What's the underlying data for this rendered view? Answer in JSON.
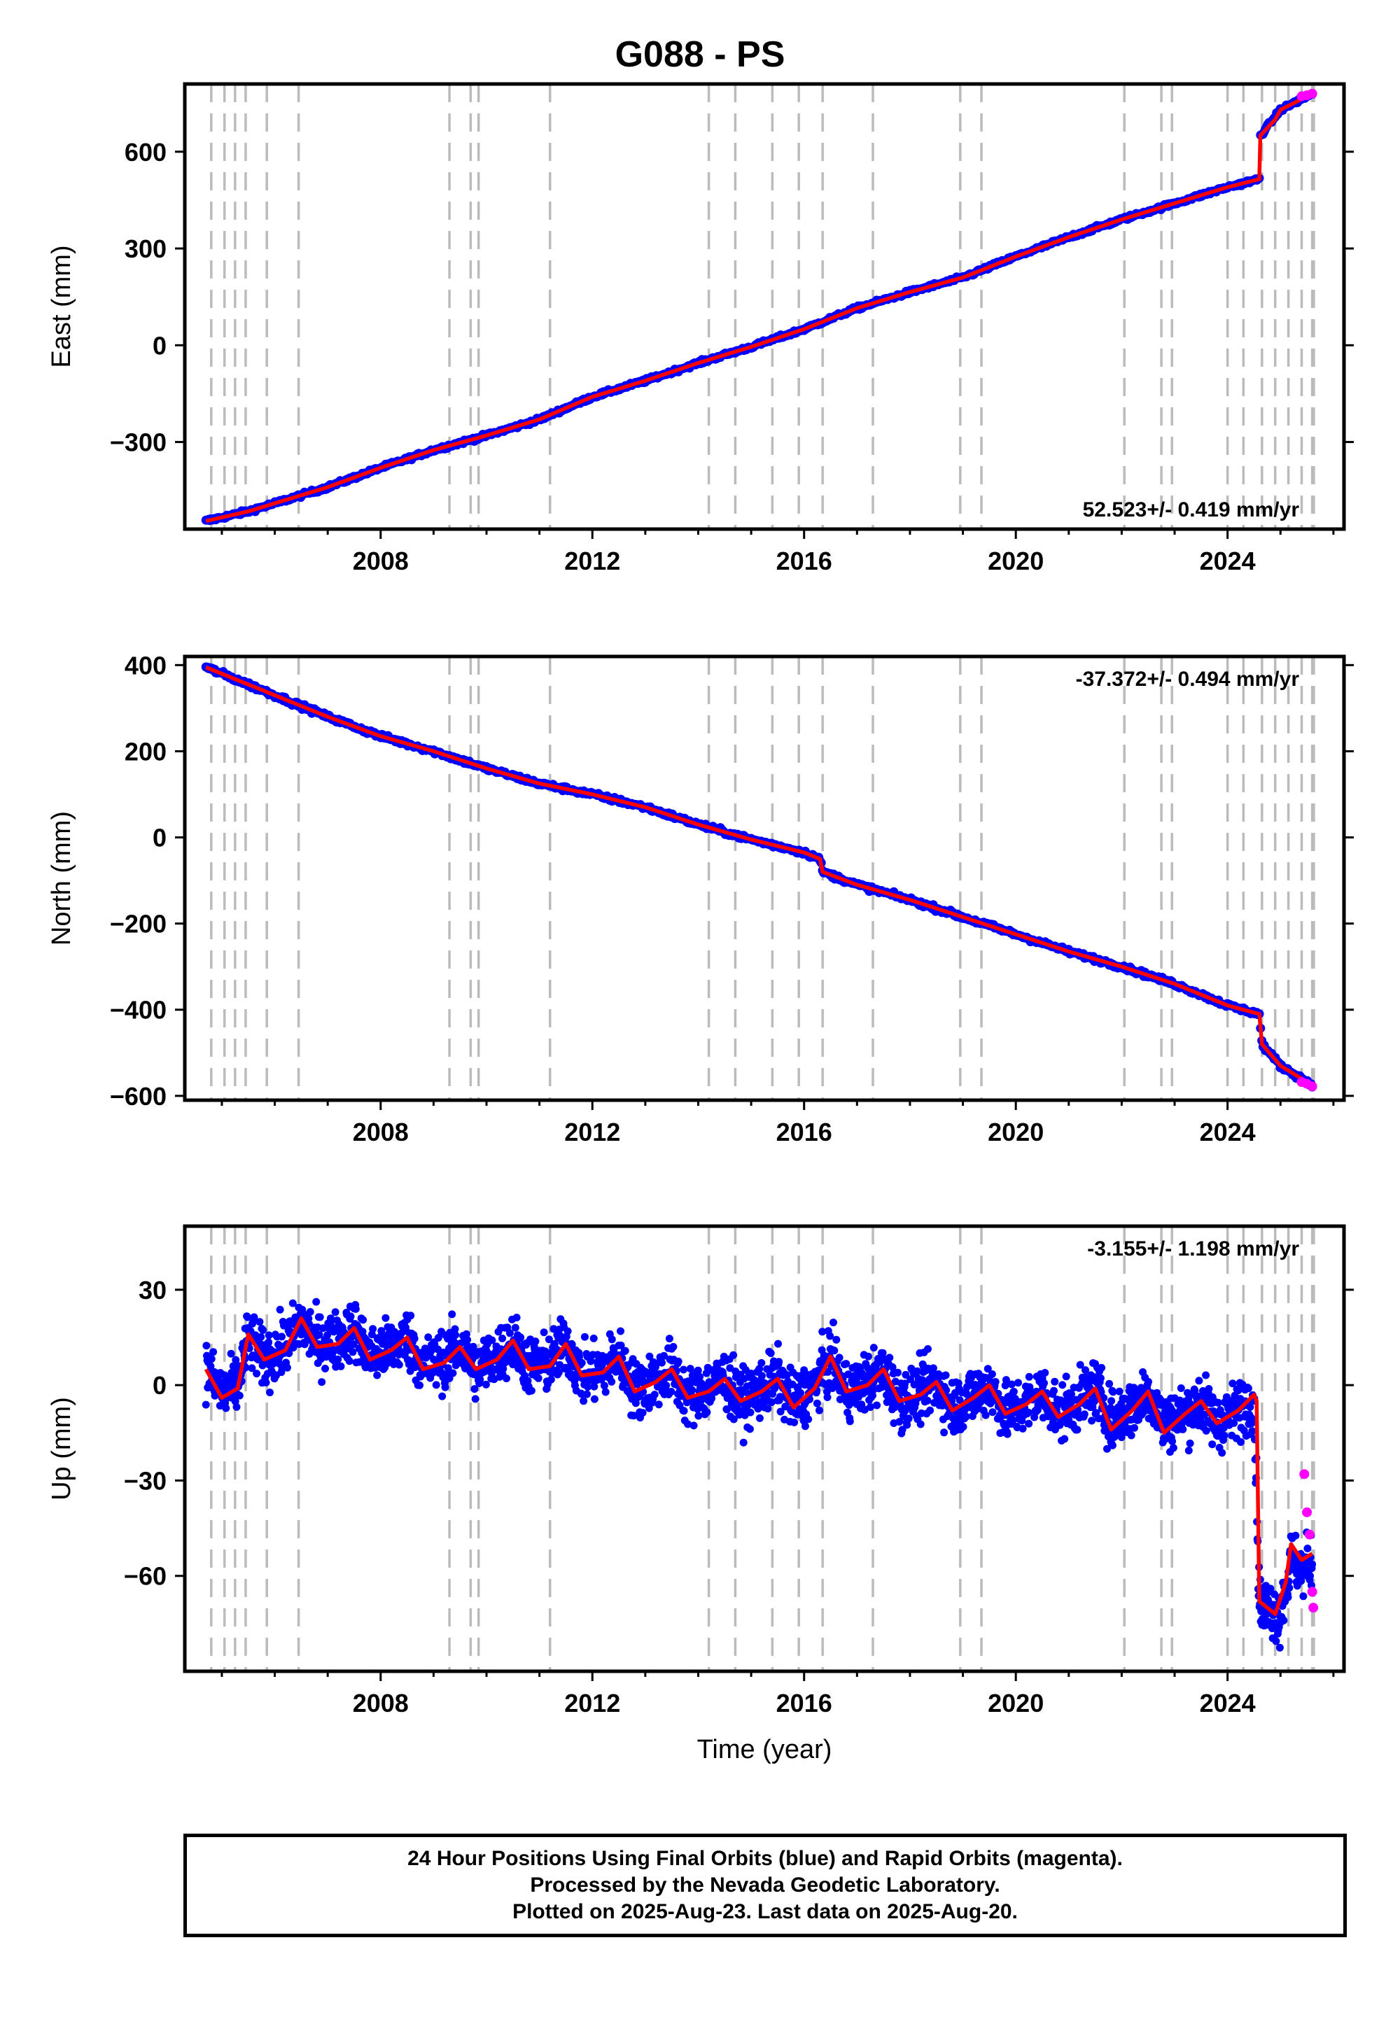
{
  "title": "G088 - PS",
  "x_axis_label": "Time (year)",
  "footer": {
    "line1": "24 Hour Positions Using Final Orbits (blue) and Rapid Orbits (magenta).",
    "line2": "Processed by the Nevada Geodetic Laboratory.",
    "line3": "Plotted on 2025-Aug-23. Last data on 2025-Aug-20."
  },
  "colors": {
    "final": "#0000ff",
    "rapid": "#ff00ff",
    "model": "#ff0000",
    "steps": "#bbbbbb"
  },
  "chart_data": [
    {
      "type": "scatter",
      "component": "east",
      "ylabel": "East (mm)",
      "rate": "52.523+/- 0.419 mm/yr",
      "xlim": [
        2004.3,
        2026.2
      ],
      "ylim": [
        -570,
        810
      ],
      "yticks": [
        -300,
        0,
        300,
        600
      ],
      "ytick_labels": [
        "−300",
        "0",
        "300",
        "600"
      ],
      "xticks": [
        2008,
        2012,
        2016,
        2020,
        2024
      ],
      "series": [
        {
          "name": "Final Orbits",
          "x": [
            2004.7,
            2005.5,
            2006.0,
            2007.0,
            2008.0,
            2009.0,
            2010.0,
            2011.0,
            2012.0,
            2013.0,
            2014.0,
            2015.0,
            2016.0,
            2017.0,
            2018.0,
            2019.0,
            2020.0,
            2021.0,
            2022.0,
            2023.0,
            2024.0,
            2024.6,
            2024.62,
            2025.0,
            2025.6
          ],
          "y": [
            -545,
            -515,
            -490,
            -440,
            -380,
            -325,
            -280,
            -230,
            -160,
            -110,
            -55,
            -5,
            50,
            115,
            165,
            210,
            275,
            335,
            390,
            440,
            490,
            515,
            650,
            730,
            780
          ]
        },
        {
          "name": "Rapid Orbits",
          "x": [
            2025.4,
            2025.5,
            2025.6
          ],
          "y": [
            772,
            775,
            780
          ]
        }
      ],
      "model": {
        "x": [
          2004.7,
          2005.5,
          2006.0,
          2007.0,
          2008.0,
          2009.0,
          2010.0,
          2011.0,
          2012.0,
          2013.0,
          2014.0,
          2015.0,
          2016.0,
          2017.0,
          2018.0,
          2019.0,
          2020.0,
          2021.0,
          2022.0,
          2023.0,
          2024.0,
          2024.6,
          2024.62,
          2024.9,
          2025.0,
          2025.6
        ],
        "y": [
          -545,
          -515,
          -490,
          -440,
          -380,
          -325,
          -280,
          -230,
          -160,
          -110,
          -55,
          -5,
          50,
          115,
          165,
          210,
          275,
          335,
          390,
          440,
          490,
          515,
          650,
          700,
          730,
          780
        ]
      }
    },
    {
      "type": "scatter",
      "component": "north",
      "ylabel": "North (mm)",
      "rate": "-37.372+/- 0.494 mm/yr",
      "xlim": [
        2004.3,
        2026.2
      ],
      "ylim": [
        -610,
        420
      ],
      "yticks": [
        -600,
        -400,
        -200,
        0,
        200,
        400
      ],
      "ytick_labels": [
        "−600",
        "−400",
        "−200",
        "0",
        "200",
        "400"
      ],
      "xticks": [
        2008,
        2012,
        2016,
        2020,
        2024
      ],
      "series": [
        {
          "name": "Final Orbits",
          "x": [
            2004.7,
            2006.0,
            2007.0,
            2008.0,
            2009.0,
            2010.0,
            2011.0,
            2012.0,
            2013.0,
            2014.0,
            2015.0,
            2016.0,
            2016.3,
            2016.35,
            2017.0,
            2018.0,
            2019.0,
            2020.0,
            2021.0,
            2022.0,
            2023.0,
            2024.0,
            2024.6,
            2024.65,
            2025.0,
            2025.6
          ],
          "y": [
            395,
            330,
            280,
            235,
            200,
            160,
            125,
            100,
            70,
            30,
            -5,
            -35,
            -50,
            -80,
            -110,
            -145,
            -185,
            -225,
            -265,
            -300,
            -340,
            -390,
            -410,
            -480,
            -530,
            -575
          ]
        },
        {
          "name": "Rapid Orbits",
          "x": [
            2025.4,
            2025.5,
            2025.6
          ],
          "y": [
            -568,
            -572,
            -578
          ]
        }
      ],
      "model": {
        "x": [
          2004.7,
          2006.0,
          2007.0,
          2008.0,
          2009.0,
          2010.0,
          2011.0,
          2012.0,
          2013.0,
          2014.0,
          2015.0,
          2016.0,
          2016.3,
          2016.35,
          2017.0,
          2018.0,
          2019.0,
          2020.0,
          2021.0,
          2022.0,
          2023.0,
          2024.0,
          2024.6,
          2024.65,
          2025.0,
          2025.6
        ],
        "y": [
          395,
          330,
          280,
          235,
          200,
          160,
          125,
          100,
          70,
          30,
          -5,
          -35,
          -50,
          -80,
          -110,
          -145,
          -185,
          -225,
          -265,
          -300,
          -340,
          -390,
          -410,
          -480,
          -530,
          -575
        ]
      }
    },
    {
      "type": "scatter",
      "component": "up",
      "ylabel": "Up (mm)",
      "rate": "-3.155+/- 1.198 mm/yr",
      "xlim": [
        2004.3,
        2026.2
      ],
      "ylim": [
        -90,
        50
      ],
      "yticks": [
        -60,
        -30,
        0,
        30
      ],
      "ytick_labels": [
        "−60",
        "−30",
        "0",
        "30"
      ],
      "xticks": [
        2008,
        2012,
        2016,
        2020,
        2024
      ],
      "series": [
        {
          "name": "Final Orbits",
          "x": [
            2004.7,
            2005.0,
            2005.3,
            2005.5,
            2005.8,
            2006.2,
            2006.5,
            2006.8,
            2007.2,
            2007.5,
            2007.8,
            2008.2,
            2008.5,
            2008.8,
            2009.2,
            2009.5,
            2009.8,
            2010.2,
            2010.5,
            2010.8,
            2011.2,
            2011.5,
            2011.8,
            2012.2,
            2012.5,
            2012.8,
            2013.2,
            2013.5,
            2013.8,
            2014.2,
            2014.5,
            2014.8,
            2015.2,
            2015.5,
            2015.8,
            2016.2,
            2016.5,
            2016.8,
            2017.2,
            2017.5,
            2017.8,
            2018.2,
            2018.5,
            2018.8,
            2019.2,
            2019.5,
            2019.8,
            2020.2,
            2020.5,
            2020.8,
            2021.2,
            2021.5,
            2021.8,
            2022.2,
            2022.5,
            2022.8,
            2023.2,
            2023.5,
            2023.8,
            2024.2,
            2024.5,
            2024.6,
            2024.7,
            2025.0,
            2025.2,
            2025.4,
            2025.6
          ],
          "y": [
            5,
            -3,
            0,
            15,
            8,
            12,
            20,
            13,
            14,
            18,
            9,
            12,
            15,
            6,
            8,
            12,
            5,
            9,
            14,
            6,
            7,
            13,
            3,
            5,
            9,
            -2,
            2,
            5,
            -4,
            -1,
            2,
            -5,
            -1,
            2,
            -6,
            0,
            8,
            -2,
            1,
            4,
            -5,
            -2,
            1,
            -7,
            -3,
            0,
            -9,
            -6,
            -2,
            -9,
            -5,
            -1,
            -11,
            -7,
            -2,
            -12,
            -9,
            -5,
            -12,
            -8,
            -4,
            -68,
            -70,
            -72,
            -55,
            -58,
            -56
          ]
        },
        {
          "name": "Rapid Orbits",
          "x": [
            2025.45,
            2025.5,
            2025.55,
            2025.6,
            2025.62
          ],
          "y": [
            -28,
            -40,
            -47,
            -65,
            -70
          ]
        }
      ],
      "model": {
        "x": [
          2004.7,
          2005.0,
          2005.3,
          2005.5,
          2005.8,
          2006.2,
          2006.5,
          2006.8,
          2007.2,
          2007.5,
          2007.8,
          2008.2,
          2008.5,
          2008.8,
          2009.2,
          2009.5,
          2009.8,
          2010.2,
          2010.5,
          2010.8,
          2011.2,
          2011.5,
          2011.8,
          2012.2,
          2012.5,
          2012.8,
          2013.2,
          2013.5,
          2013.8,
          2014.2,
          2014.5,
          2014.8,
          2015.2,
          2015.5,
          2015.8,
          2016.2,
          2016.5,
          2016.8,
          2017.2,
          2017.5,
          2017.8,
          2018.2,
          2018.5,
          2018.8,
          2019.2,
          2019.5,
          2019.8,
          2020.2,
          2020.5,
          2020.8,
          2021.2,
          2021.5,
          2021.8,
          2022.2,
          2022.5,
          2022.8,
          2023.2,
          2023.5,
          2023.8,
          2024.2,
          2024.5,
          2024.55,
          2024.6,
          2024.9,
          2025.1,
          2025.2,
          2025.4,
          2025.6
        ],
        "y": [
          5,
          -4,
          -1,
          16,
          8,
          11,
          21,
          12,
          13,
          18,
          8,
          11,
          15,
          5,
          7,
          12,
          5,
          8,
          14,
          5,
          6,
          13,
          3,
          4,
          9,
          -2,
          1,
          5,
          -4,
          -2,
          2,
          -5,
          -2,
          2,
          -7,
          -1,
          9,
          -2,
          0,
          5,
          -5,
          -3,
          1,
          -8,
          -4,
          0,
          -9,
          -6,
          -2,
          -10,
          -6,
          -1,
          -14,
          -8,
          -2,
          -15,
          -9,
          -5,
          -12,
          -8,
          -3,
          -5,
          -68,
          -72,
          -62,
          -50,
          -55,
          -53
        ]
      }
    }
  ],
  "step_years": [
    2004.8,
    2005.05,
    2005.25,
    2005.45,
    2005.85,
    2006.45,
    2009.3,
    2009.7,
    2009.85,
    2011.2,
    2014.2,
    2014.7,
    2015.4,
    2015.9,
    2016.35,
    2017.3,
    2018.95,
    2019.35,
    2022.05,
    2022.75,
    2022.95,
    2024.0,
    2024.3,
    2024.65,
    2024.9,
    2025.15,
    2025.4,
    2025.6,
    2025.63
  ]
}
